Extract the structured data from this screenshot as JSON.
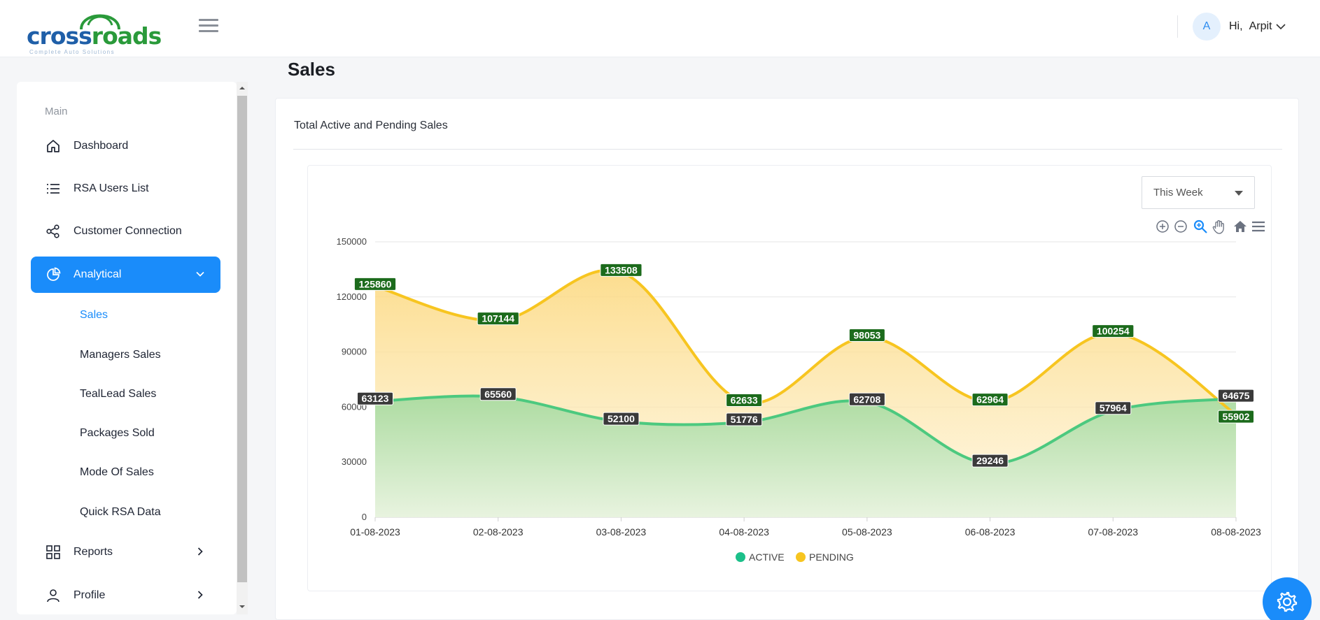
{
  "app": {
    "logo_text_1": "cross",
    "logo_text_2": "roads",
    "logo_tagline": "Complete Auto Solutions"
  },
  "header": {
    "avatar_initial": "A",
    "greeting": "Hi,",
    "user_name": "Arpit"
  },
  "sidebar": {
    "section_label": "Main",
    "items": [
      {
        "label": "Dashboard",
        "icon": "home-icon"
      },
      {
        "label": "RSA Users List",
        "icon": "list-icon"
      },
      {
        "label": "Customer Connection",
        "icon": "share-icon"
      },
      {
        "label": "Analytical",
        "icon": "pie-chart-icon",
        "active": true,
        "expanded": true
      },
      {
        "label": "Reports",
        "icon": "grid-icon"
      },
      {
        "label": "Profile",
        "icon": "user-icon"
      }
    ],
    "sub_items": [
      "Sales",
      "Managers Sales",
      "TealLead Sales",
      "Packages Sold",
      "Mode Of Sales",
      "Quick RSA Data"
    ],
    "active_sub": "Sales"
  },
  "main": {
    "page_title": "Sales",
    "card_title": "Total Active and Pending Sales",
    "period_select": "This Week"
  },
  "colors": {
    "accent": "#1a8cfa",
    "active_line": "#4cc97f",
    "pending_line": "#f7c520",
    "pending_label_bg": "#1c6b1c",
    "active_label_bg": "#3a3a3a"
  },
  "chart_data": {
    "type": "area",
    "title": "",
    "xlabel": "",
    "ylabel": "",
    "categories": [
      "01-08-2023",
      "02-08-2023",
      "03-08-2023",
      "04-08-2023",
      "05-08-2023",
      "06-08-2023",
      "07-08-2023",
      "08-08-2023"
    ],
    "ylim": [
      0,
      150000
    ],
    "yticks": [
      "0",
      "30000",
      "60000",
      "90000",
      "120000",
      "150000"
    ],
    "grid": true,
    "legend_position": "bottom",
    "series": [
      {
        "name": "ACTIVE",
        "values": [
          63123,
          65560,
          52100,
          51776,
          62708,
          29246,
          57964,
          64675
        ]
      },
      {
        "name": "PENDING",
        "values": [
          125860,
          107144,
          133508,
          62633,
          98053,
          62964,
          100254,
          55902
        ]
      }
    ]
  }
}
